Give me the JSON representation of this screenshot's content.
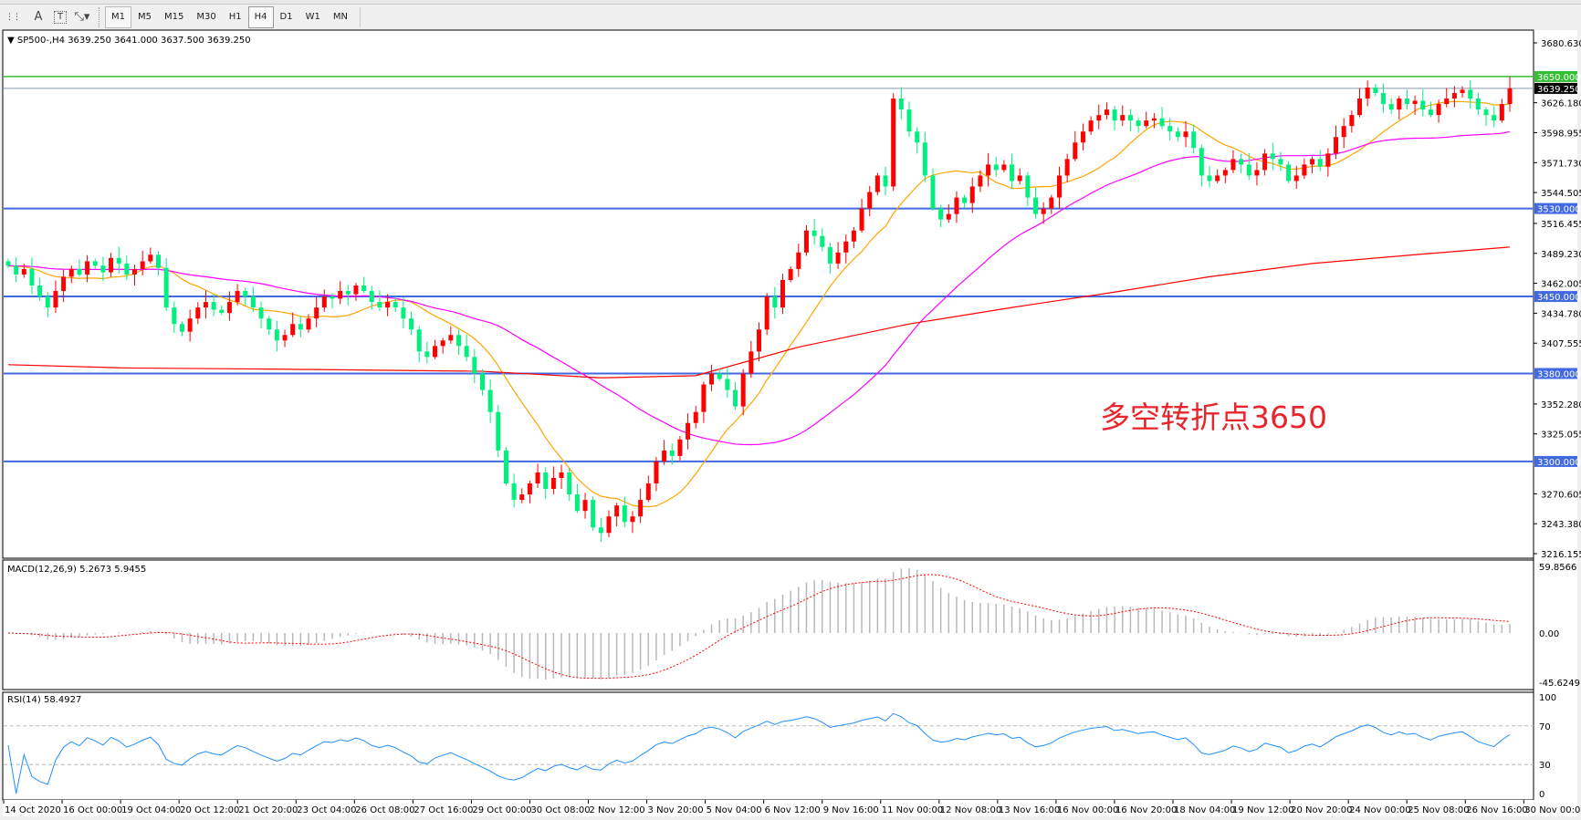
{
  "toolbar": {
    "icons": [
      "grid-font-icon",
      "text-a-icon",
      "text-label-icon",
      "arrows-icon"
    ],
    "text_a": "A",
    "text_t": "T",
    "timeframes": [
      "M1",
      "M5",
      "M15",
      "M30",
      "H1",
      "H4",
      "D1",
      "W1",
      "MN"
    ],
    "active_timeframe": "H4"
  },
  "chart": {
    "header": "SP500-,H4  3639.250 3641.000 3637.500 3639.250",
    "annotation": "多空转折点3650",
    "annotation_color": "#e8242c",
    "macd_title": "MACD(12,26,9) 5.2673 5.9455",
    "rsi_title": "RSI(14) 58.4927",
    "colors": {
      "up": "#ff0000",
      "down": "#00f080",
      "ma_fast": "#ffa500",
      "ma_slow": "#ff00ff",
      "ma_long": "#ff0000",
      "level": "#4169e1",
      "pivot": "#33c033",
      "macd_hist": "#b8b8b8",
      "macd_signal": "#ff0000",
      "rsi": "#1e90ff"
    }
  },
  "chart_data": [
    {
      "type": "candlestick",
      "symbol": "SP500-",
      "timeframe": "H4",
      "ylim": [
        3216.155,
        3680.63
      ],
      "y_ticks": [
        "3680.630",
        "3626.180",
        "3598.955",
        "3571.730",
        "3544.505",
        "3516.455",
        "3489.230",
        "3462.005",
        "3434.780",
        "3407.555",
        "3352.280",
        "3325.055",
        "3270.605",
        "3243.380",
        "3216.155"
      ],
      "y_tick_values": [
        3680.63,
        3626.18,
        3598.955,
        3571.73,
        3544.505,
        3516.455,
        3489.23,
        3462.005,
        3434.78,
        3407.555,
        3352.28,
        3325.055,
        3270.605,
        3243.38,
        3216.155
      ],
      "x_ticks": [
        "14 Oct 2020",
        "16 Oct 00:00",
        "19 Oct 04:00",
        "20 Oct 12:00",
        "21 Oct 20:00",
        "23 Oct 04:00",
        "26 Oct 08:00",
        "27 Oct 16:00",
        "29 Oct 00:00",
        "30 Oct 08:00",
        "2 Nov 12:00",
        "3 Nov 20:00",
        "5 Nov 04:00",
        "6 Nov 12:00",
        "9 Nov 16:00",
        "11 Nov 00:00",
        "12 Nov 08:00",
        "13 Nov 16:00",
        "16 Nov 00:00",
        "16 Nov 20:00",
        "18 Nov 04:00",
        "19 Nov 12:00",
        "20 Nov 20:00",
        "24 Nov 00:00",
        "25 Nov 08:00",
        "26 Nov 16:00",
        "30 Nov 00:00"
      ],
      "levels": [
        {
          "value": 3650,
          "label": "3650.000",
          "kind": "pivot"
        },
        {
          "value": 3530,
          "label": "3530.000",
          "kind": "level"
        },
        {
          "value": 3450,
          "label": "3450.000",
          "kind": "level"
        },
        {
          "value": 3380,
          "label": "3380.000",
          "kind": "level"
        },
        {
          "value": 3300,
          "label": "3300.000",
          "kind": "level"
        }
      ],
      "current_price": {
        "value": 3639.25,
        "label": "3639.250"
      },
      "closes": [
        3478,
        3470,
        3475,
        3460,
        3450,
        3440,
        3455,
        3468,
        3475,
        3470,
        3482,
        3478,
        3472,
        3485,
        3480,
        3470,
        3475,
        3482,
        3488,
        3476,
        3440,
        3425,
        3418,
        3430,
        3440,
        3445,
        3438,
        3435,
        3445,
        3455,
        3450,
        3440,
        3430,
        3420,
        3410,
        3415,
        3425,
        3420,
        3430,
        3440,
        3450,
        3448,
        3455,
        3452,
        3460,
        3455,
        3445,
        3440,
        3445,
        3440,
        3430,
        3420,
        3400,
        3395,
        3405,
        3410,
        3415,
        3405,
        3395,
        3380,
        3365,
        3345,
        3310,
        3280,
        3265,
        3270,
        3280,
        3290,
        3275,
        3285,
        3290,
        3270,
        3255,
        3265,
        3240,
        3235,
        3250,
        3260,
        3245,
        3250,
        3265,
        3280,
        3300,
        3310,
        3305,
        3320,
        3335,
        3345,
        3370,
        3380,
        3375,
        3365,
        3350,
        3380,
        3400,
        3420,
        3450,
        3440,
        3465,
        3475,
        3490,
        3510,
        3505,
        3495,
        3480,
        3490,
        3500,
        3510,
        3530,
        3545,
        3560,
        3550,
        3630,
        3620,
        3600,
        3590,
        3560,
        3530,
        3520,
        3525,
        3540,
        3535,
        3550,
        3560,
        3570,
        3565,
        3570,
        3555,
        3560,
        3540,
        3525,
        3530,
        3540,
        3560,
        3575,
        3590,
        3600,
        3610,
        3615,
        3620,
        3610,
        3615,
        3610,
        3605,
        3610,
        3612,
        3605,
        3600,
        3595,
        3600,
        3585,
        3560,
        3555,
        3560,
        3565,
        3575,
        3570,
        3560,
        3565,
        3580,
        3575,
        3570,
        3555,
        3560,
        3570,
        3575,
        3568,
        3580,
        3595,
        3605,
        3615,
        3630,
        3640,
        3635,
        3625,
        3620,
        3630,
        3625,
        3628,
        3620,
        3615,
        3625,
        3630,
        3635,
        3638,
        3630,
        3620,
        3615,
        3610,
        3625,
        3639.25
      ],
      "ma_long": [
        {
          "bar": 0,
          "value": 3388
        },
        {
          "bar": 15,
          "value": 3385
        },
        {
          "bar": 33,
          "value": 3384
        },
        {
          "bar": 60,
          "value": 3382
        },
        {
          "bar": 75,
          "value": 3376
        },
        {
          "bar": 87,
          "value": 3378
        },
        {
          "bar": 100,
          "value": 3404
        },
        {
          "bar": 114,
          "value": 3425
        },
        {
          "bar": 127,
          "value": 3440
        },
        {
          "bar": 140,
          "value": 3454
        },
        {
          "bar": 152,
          "value": 3468
        },
        {
          "bar": 165,
          "value": 3480
        },
        {
          "bar": 178,
          "value": 3488
        },
        {
          "bar": 190,
          "value": 3495
        }
      ]
    },
    {
      "type": "bar+line",
      "title": "MACD(12,26,9) 5.2673 5.9455",
      "ylim": [
        -45.6249,
        59.8566
      ],
      "y_ticks": [
        "59.8566",
        "0.00",
        "-45.6249"
      ]
    },
    {
      "type": "line",
      "title": "RSI(14) 58.4927",
      "ylim": [
        0,
        100
      ],
      "y_ticks": [
        "100",
        "70",
        "30",
        "0"
      ],
      "levels": [
        70,
        30
      ]
    }
  ]
}
